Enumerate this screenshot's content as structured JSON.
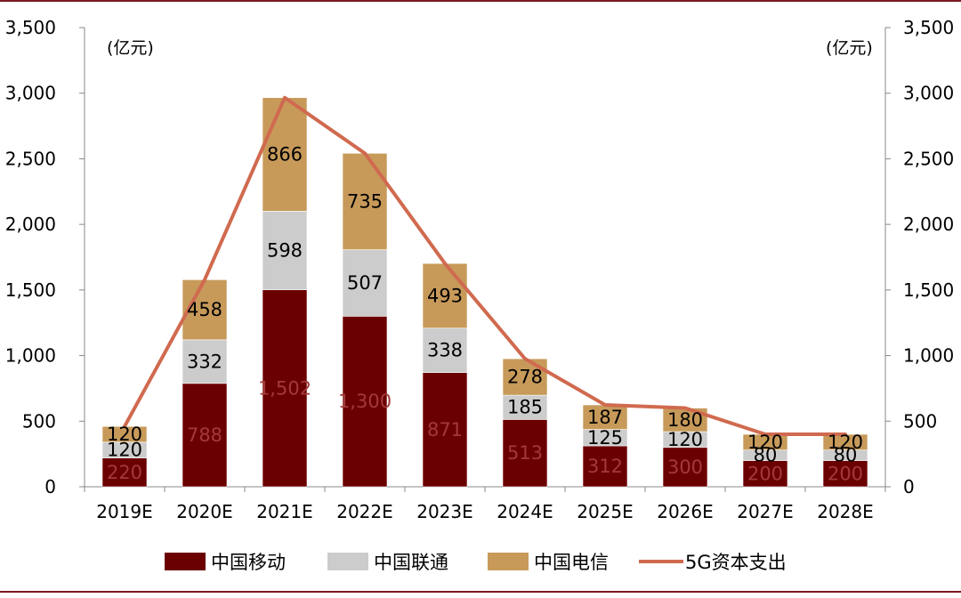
{
  "chart_data": {
    "type": "bar",
    "stacked": true,
    "unit_left": "(亿元)",
    "unit_right": "(亿元)",
    "categories": [
      "2019E",
      "2020E",
      "2021E",
      "2022E",
      "2023E",
      "2024E",
      "2025E",
      "2026E",
      "2027E",
      "2028E"
    ],
    "series": [
      {
        "name": "中国移动",
        "color": "#6b0000",
        "label_color": "#a33a3a",
        "values": [
          220,
          788,
          1502,
          1300,
          871,
          513,
          312,
          300,
          200,
          200
        ]
      },
      {
        "name": "中国联通",
        "color": "#cccccc",
        "label_color": "#000000",
        "values": [
          120,
          332,
          598,
          507,
          338,
          185,
          125,
          120,
          80,
          80
        ]
      },
      {
        "name": "中国电信",
        "color": "#c79a5a",
        "label_color": "#000000",
        "values": [
          120,
          458,
          866,
          735,
          493,
          278,
          187,
          180,
          120,
          120
        ]
      }
    ],
    "line": {
      "name": "5G资本支出",
      "color": "#d06a4f",
      "values": [
        460,
        1578,
        2966,
        2542,
        1702,
        976,
        624,
        600,
        400,
        400
      ]
    },
    "ylim": [
      0,
      3500
    ],
    "yticks": [
      0,
      500,
      1000,
      1500,
      2000,
      2500,
      3000,
      3500
    ],
    "ytick_labels": [
      "0",
      "500",
      "1,000",
      "1,500",
      "2,000",
      "2,500",
      "3,000",
      "3,500"
    ],
    "legend": [
      "中国移动",
      "中国联通",
      "中国电信",
      "5G资本支出"
    ],
    "legend_position": "bottom"
  }
}
